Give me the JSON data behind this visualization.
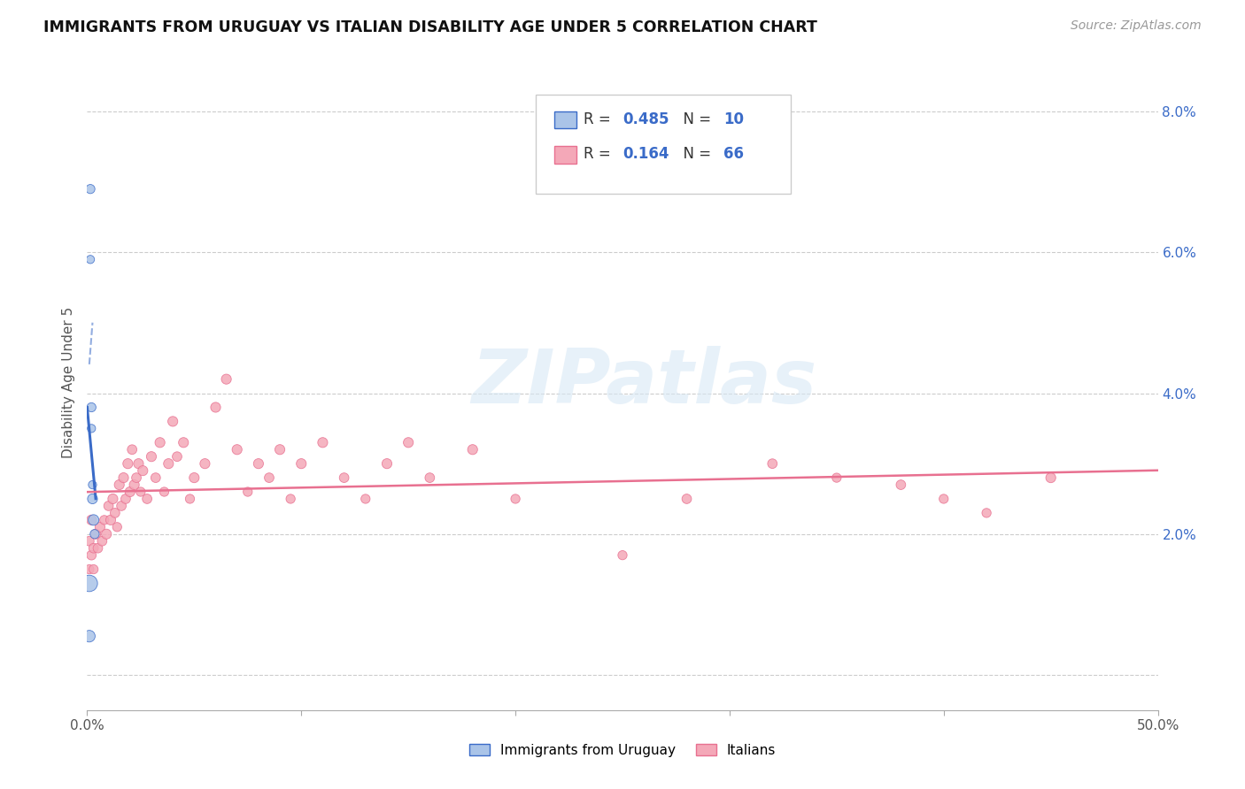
{
  "title": "IMMIGRANTS FROM URUGUAY VS ITALIAN DISABILITY AGE UNDER 5 CORRELATION CHART",
  "source": "Source: ZipAtlas.com",
  "ylabel": "Disability Age Under 5",
  "watermark": "ZIPatlas",
  "xmin": 0.0,
  "xmax": 0.5,
  "ymin": -0.005,
  "ymax": 0.088,
  "yticks": [
    0.0,
    0.02,
    0.04,
    0.06,
    0.08
  ],
  "ytick_labels_right": [
    "",
    "2.0%",
    "4.0%",
    "6.0%",
    "8.0%"
  ],
  "xticks": [
    0.0,
    0.1,
    0.2,
    0.3,
    0.4,
    0.5
  ],
  "xtick_labels": [
    "0.0%",
    "",
    "",
    "",
    "",
    "50.0%"
  ],
  "color_uruguay": "#aac4e8",
  "color_italy": "#f4a8b8",
  "trendline_uruguay": "#3a6bc8",
  "trendline_italy": "#e87090",
  "legend_label1": "Immigrants from Uruguay",
  "legend_label2": "Italians",
  "uruguay_x": [
    0.0015,
    0.0015,
    0.002,
    0.002,
    0.0025,
    0.0025,
    0.003,
    0.0035,
    0.001,
    0.001
  ],
  "uruguay_y": [
    0.069,
    0.059,
    0.038,
    0.035,
    0.027,
    0.025,
    0.022,
    0.02,
    0.013,
    0.0055
  ],
  "uruguay_size": [
    55,
    45,
    55,
    45,
    45,
    65,
    75,
    55,
    180,
    90
  ],
  "italy_x": [
    0.001,
    0.001,
    0.002,
    0.002,
    0.003,
    0.003,
    0.004,
    0.005,
    0.006,
    0.007,
    0.008,
    0.009,
    0.01,
    0.011,
    0.012,
    0.013,
    0.014,
    0.015,
    0.016,
    0.017,
    0.018,
    0.019,
    0.02,
    0.021,
    0.022,
    0.023,
    0.024,
    0.025,
    0.026,
    0.028,
    0.03,
    0.032,
    0.034,
    0.036,
    0.038,
    0.04,
    0.042,
    0.045,
    0.048,
    0.05,
    0.055,
    0.06,
    0.065,
    0.07,
    0.075,
    0.08,
    0.085,
    0.09,
    0.095,
    0.1,
    0.11,
    0.12,
    0.13,
    0.14,
    0.15,
    0.16,
    0.18,
    0.2,
    0.25,
    0.28,
    0.32,
    0.35,
    0.38,
    0.4,
    0.42,
    0.45
  ],
  "italy_y": [
    0.019,
    0.015,
    0.022,
    0.017,
    0.018,
    0.015,
    0.02,
    0.018,
    0.021,
    0.019,
    0.022,
    0.02,
    0.024,
    0.022,
    0.025,
    0.023,
    0.021,
    0.027,
    0.024,
    0.028,
    0.025,
    0.03,
    0.026,
    0.032,
    0.027,
    0.028,
    0.03,
    0.026,
    0.029,
    0.025,
    0.031,
    0.028,
    0.033,
    0.026,
    0.03,
    0.036,
    0.031,
    0.033,
    0.025,
    0.028,
    0.03,
    0.038,
    0.042,
    0.032,
    0.026,
    0.03,
    0.028,
    0.032,
    0.025,
    0.03,
    0.033,
    0.028,
    0.025,
    0.03,
    0.033,
    0.028,
    0.032,
    0.025,
    0.017,
    0.025,
    0.03,
    0.028,
    0.027,
    0.025,
    0.023,
    0.028
  ],
  "italy_size": [
    60,
    55,
    65,
    60,
    60,
    55,
    65,
    60,
    65,
    60,
    55,
    65,
    60,
    65,
    65,
    60,
    55,
    65,
    60,
    65,
    60,
    65,
    65,
    60,
    65,
    60,
    65,
    55,
    65,
    60,
    65,
    60,
    65,
    55,
    65,
    65,
    60,
    65,
    55,
    65,
    65,
    65,
    65,
    65,
    55,
    65,
    60,
    65,
    55,
    65,
    65,
    60,
    55,
    65,
    65,
    60,
    65,
    55,
    55,
    60,
    60,
    55,
    60,
    55,
    55,
    65
  ]
}
